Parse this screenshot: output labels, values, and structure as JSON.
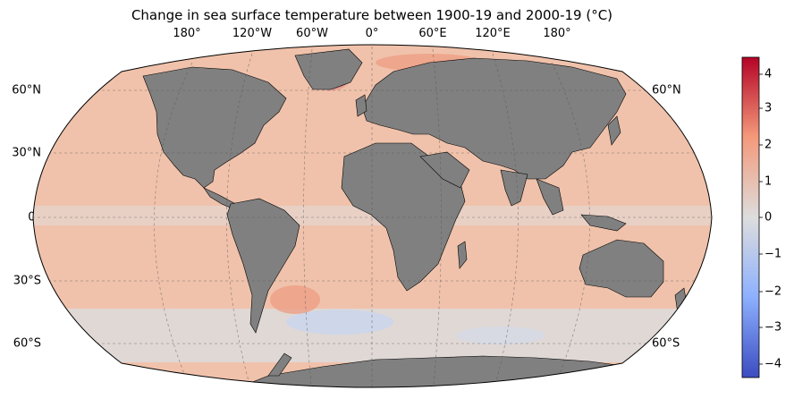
{
  "title": "Change in sea surface temperature between 1900-19 and 2000-19 (°C)",
  "longitude_labels": [
    "180°",
    "120°W",
    "60°W",
    "0°",
    "60°E",
    "120°E",
    "180°"
  ],
  "latitude_labels_left": [
    "60°N",
    "30°N",
    "0°",
    "30°S",
    "60°S"
  ],
  "latitude_labels_right": [
    "60°N",
    "60°S"
  ],
  "colorbar": {
    "colormap": "coolwarm",
    "range": [
      -4.4,
      4.4
    ],
    "ticks": [
      "4",
      "3",
      "2",
      "1",
      "0",
      "−1",
      "−2",
      "−3",
      "−4"
    ],
    "tick_values": [
      4,
      3,
      2,
      1,
      0,
      -1,
      -2,
      -3,
      -4
    ],
    "low_color": "#3b4cc0",
    "mid_color": "#dddddd",
    "high_color": "#b40426"
  },
  "land_color": "#808080",
  "ocean_base_color": "#f0c0a8"
}
